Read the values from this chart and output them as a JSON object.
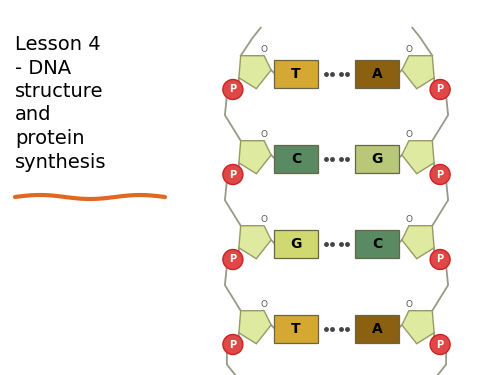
{
  "title": "Lesson 4\n- DNA\nstructure\nand\nprotein\nsynthesis",
  "title_fontsize": 14,
  "underline_color": "#E06820",
  "bg_color": "#ffffff",
  "sugar_color": "#ddeaa0",
  "sugar_edge_color": "#999966",
  "phosphate_fill": "#e04848",
  "phosphate_edge": "#cc2222",
  "line_color": "#999988",
  "dot_color": "#444444",
  "base_pairs": [
    {
      "left": "T",
      "right": "A",
      "lc": "#d4a832",
      "rc": "#8B6010"
    },
    {
      "left": "C",
      "right": "G",
      "lc": "#5a8a62",
      "rc": "#b8c878"
    },
    {
      "left": "G",
      "right": "C",
      "lc": "#d0d870",
      "rc": "#5a8a62"
    },
    {
      "left": "T",
      "right": "A",
      "lc": "#d4a832",
      "rc": "#8B6010"
    }
  ]
}
